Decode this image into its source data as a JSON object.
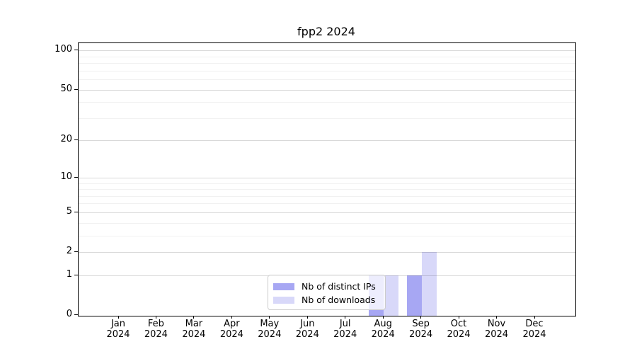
{
  "chart_data": {
    "type": "bar",
    "title": "fpp2 2024",
    "x_labels": [
      {
        "month": "Jan",
        "year": "2024"
      },
      {
        "month": "Feb",
        "year": "2024"
      },
      {
        "month": "Mar",
        "year": "2024"
      },
      {
        "month": "Apr",
        "year": "2024"
      },
      {
        "month": "May",
        "year": "2024"
      },
      {
        "month": "Jun",
        "year": "2024"
      },
      {
        "month": "Jul",
        "year": "2024"
      },
      {
        "month": "Aug",
        "year": "2024"
      },
      {
        "month": "Sep",
        "year": "2024"
      },
      {
        "month": "Oct",
        "year": "2024"
      },
      {
        "month": "Nov",
        "year": "2024"
      },
      {
        "month": "Dec",
        "year": "2024"
      }
    ],
    "series": [
      {
        "name": "Nb of distinct IPs",
        "color": "#a7a7f3",
        "values": [
          0,
          0,
          0,
          0,
          0,
          0,
          0,
          1,
          1,
          0,
          0,
          0
        ]
      },
      {
        "name": "Nb of downloads",
        "color": "#d8d8f9",
        "values": [
          0,
          0,
          0,
          0,
          0,
          0,
          0,
          1,
          2,
          0,
          0,
          0
        ]
      }
    ],
    "y_scale": "log1p",
    "y_major_ticks": [
      0,
      1,
      2,
      5,
      10,
      20,
      50,
      100
    ],
    "y_minor_gridlines": [
      3,
      4,
      6,
      7,
      8,
      9,
      30,
      40,
      60,
      70,
      80,
      90
    ],
    "ylim": [
      0,
      114
    ],
    "grid": "horizontal",
    "legend_position": "bottom-center"
  },
  "legend": {
    "items": [
      {
        "label": "Nb of distinct IPs"
      },
      {
        "label": "Nb of downloads"
      }
    ]
  }
}
